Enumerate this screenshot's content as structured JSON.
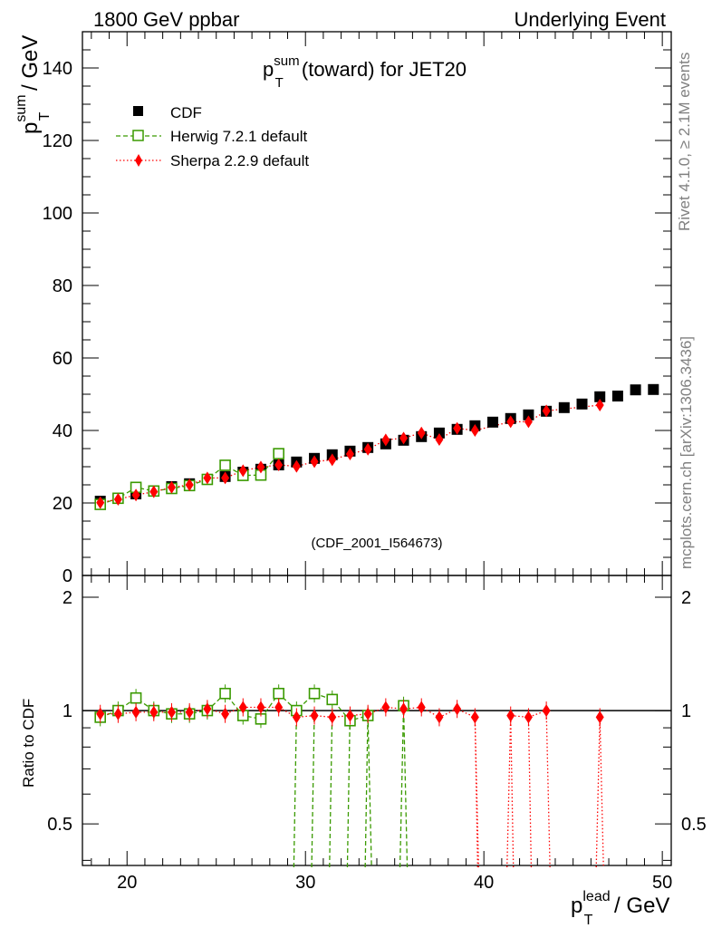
{
  "header": {
    "left": "1800 GeV ppbar",
    "right": "Underlying Event"
  },
  "side_labels": {
    "rivet": "Rivet 4.1.0, ≥ 2.1M events",
    "mcplots": "mcplots.cern.ch [arXiv:1306.3436]"
  },
  "colors": {
    "cdf": "#000000",
    "herwig": "#3a9a00",
    "sherpa": "#ff0000",
    "watermark": "#808080"
  },
  "chart_data": [
    {
      "type": "scatter",
      "title_main": "p",
      "title_sup": "sum",
      "title_sub": "T",
      "title_rest": " (toward) for JET20",
      "ylabel_main": "p",
      "ylabel_sup": "sum",
      "ylabel_sub": "T",
      "ylabel_rest": " / GeV",
      "watermark": "(CDF_2001_I564673)",
      "xlim": [
        17.5,
        50.5
      ],
      "ylim": [
        0,
        150
      ],
      "yticks": [
        0,
        20,
        40,
        60,
        80,
        100,
        120,
        140
      ],
      "ytick_labels": [
        "0",
        "20",
        "40",
        "60",
        "80",
        "100",
        "120",
        "140"
      ],
      "legend_position": "top-left",
      "series": [
        {
          "name": "CDF",
          "style": "square-filled",
          "x": [
            18.5,
            19.5,
            20.5,
            21.5,
            22.5,
            23.5,
            24.5,
            25.5,
            26.5,
            27.5,
            28.5,
            29.5,
            30.5,
            31.5,
            32.5,
            33.5,
            34.5,
            35.5,
            36.5,
            37.5,
            38.5,
            39.5,
            40.5,
            41.5,
            42.5,
            43.5,
            44.5,
            45.5,
            46.5,
            47.5,
            48.5,
            49.5
          ],
          "y": [
            20.5,
            21.3,
            22.5,
            23.3,
            24.5,
            25.3,
            26.5,
            27.3,
            28.5,
            29.3,
            30.5,
            31.3,
            32.3,
            33.3,
            34.3,
            35.3,
            36.3,
            37.3,
            38.3,
            39.3,
            40.3,
            41.3,
            42.3,
            43.3,
            44.3,
            45.3,
            46.3,
            47.3,
            49.3,
            49.5,
            51.2,
            51.3
          ]
        },
        {
          "name": "Herwig 7.2.1 default",
          "style": "square-open-dashed",
          "x": [
            18.5,
            19.5,
            20.5,
            21.5,
            22.5,
            23.5,
            24.5,
            25.5,
            26.5,
            27.5,
            28.5
          ],
          "y": [
            19.6,
            21.3,
            24.3,
            23.3,
            24.0,
            24.8,
            26.5,
            30.4,
            27.6,
            27.7,
            33.6
          ]
        },
        {
          "name": "Sherpa 2.2.9 default",
          "style": "diamond-dotted",
          "x": [
            18.5,
            19.5,
            20.5,
            21.5,
            22.5,
            23.5,
            24.5,
            25.5,
            26.5,
            27.5,
            28.5,
            29.5,
            30.5,
            31.5,
            32.5,
            33.5,
            34.5,
            35.5,
            36.5,
            37.5,
            38.5,
            39.5,
            41.5,
            42.5,
            43.5,
            46.5
          ],
          "y": [
            20.1,
            21.0,
            22.2,
            23.1,
            24.3,
            25.0,
            26.9,
            26.9,
            28.9,
            29.9,
            30.5,
            30.1,
            31.4,
            31.9,
            33.5,
            34.8,
            37.4,
            37.9,
            39.3,
            37.5,
            40.6,
            40.0,
            42.4,
            42.4,
            45.4,
            47.0
          ]
        }
      ]
    },
    {
      "type": "scatter",
      "ylabel": "Ratio to CDF",
      "xlabel_main": "p",
      "xlabel_sup": "lead",
      "xlabel_sub": "T",
      "xlabel_rest": " / GeV",
      "xlim": [
        17.5,
        50.5
      ],
      "ylim": [
        0.3877,
        2.285
      ],
      "yscale": "log",
      "xticks": [
        20,
        30,
        40,
        50
      ],
      "xtick_labels": [
        "20",
        "30",
        "40",
        "50"
      ],
      "yticks": [
        0.5,
        1,
        2
      ],
      "ytick_labels": [
        "0.5",
        "1",
        "2"
      ],
      "reference_line": 1,
      "series": [
        {
          "name": "Herwig 7.2.1 default",
          "style": "square-open-dashed",
          "x": [
            18.5,
            19.5,
            20.5,
            21.5,
            22.5,
            23.5,
            24.5,
            25.5,
            26.5,
            27.5,
            28.5,
            29.5,
            30.5,
            31.5,
            32.5,
            33.5,
            35.5
          ],
          "y": [
            0.96,
            1.0,
            1.08,
            1.0,
            0.98,
            0.98,
            1.0,
            1.11,
            0.97,
            0.95,
            1.11,
            1.0,
            1.11,
            1.07,
            0.94,
            0.97,
            1.03
          ]
        },
        {
          "name": "Sherpa 2.2.9 default",
          "style": "diamond-dotted",
          "x": [
            18.5,
            19.5,
            20.5,
            21.5,
            22.5,
            23.5,
            24.5,
            25.5,
            26.5,
            27.5,
            28.5,
            29.5,
            30.5,
            31.5,
            32.5,
            33.5,
            34.5,
            35.5,
            36.5,
            37.5,
            38.5,
            39.5,
            41.5,
            42.5,
            43.5,
            46.5
          ],
          "y": [
            0.98,
            0.98,
            0.99,
            0.99,
            0.99,
            0.99,
            1.01,
            0.98,
            1.02,
            1.02,
            1.02,
            0.96,
            0.97,
            0.96,
            0.97,
            0.98,
            1.02,
            1.01,
            1.02,
            0.96,
            1.01,
            0.96,
            0.97,
            0.96,
            1.0,
            0.96
          ]
        }
      ]
    }
  ]
}
